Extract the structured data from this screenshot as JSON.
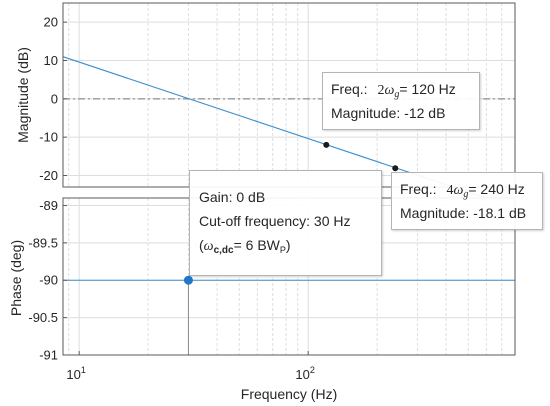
{
  "chart_data": [
    {
      "type": "line",
      "title": "",
      "ylabel": "Magnitude (dB)",
      "xscale": "log",
      "xlim": [
        8.5,
        800
      ],
      "ylim": [
        -23,
        25
      ],
      "yticks": [
        20,
        10,
        0,
        -10,
        -20
      ],
      "ytick_labels": [
        "20",
        "10",
        "0",
        "-10",
        "-20"
      ],
      "grid": true,
      "reference_line": {
        "y": 0,
        "style": "dash-dot"
      },
      "series": [
        {
          "x": [
            8.5,
            800
          ],
          "y": [
            11.0,
            -28.4
          ]
        }
      ],
      "markers": [
        {
          "x": 120,
          "y": -12
        },
        {
          "x": 240,
          "y": -18.1
        }
      ]
    },
    {
      "type": "line",
      "title": "",
      "xlabel": "Frequency  (Hz)",
      "ylabel": "Phase (deg)",
      "xscale": "log",
      "xlim": [
        8.5,
        800
      ],
      "ylim": [
        -91,
        -88.9
      ],
      "yticks": [
        -89,
        -89.5,
        -90,
        -90.5,
        -91
      ],
      "ytick_labels": [
        "-89",
        "-89.5",
        "-90",
        "-90.5",
        "-91"
      ],
      "xtick_labels": [
        {
          "base": "10",
          "exp": "1"
        },
        {
          "base": "10",
          "exp": "2"
        }
      ],
      "grid": true,
      "series": [
        {
          "x": [
            8.5,
            800
          ],
          "y": [
            -90,
            -90
          ]
        }
      ],
      "markers": [
        {
          "x": 30,
          "y": -90
        }
      ],
      "vertical_line": {
        "x": 30
      }
    }
  ],
  "colors": {
    "line": "#3a8fd1",
    "marker_magnitude": "#1a1a1a",
    "marker_phase": "#1f77c8",
    "grid": "#dedede",
    "axes": "#5a5a5a",
    "text": "#262626"
  },
  "tooltips": {
    "mag_120": {
      "freq_label": "Freq.:",
      "freq_coef": "2",
      "freq_sym": "ω",
      "freq_sub": "g",
      "freq_value": "= 120 Hz",
      "magnitude": "Magnitude: -12 dB"
    },
    "mag_240": {
      "freq_label": "Freq.:",
      "freq_coef": "4",
      "freq_sym": "ω",
      "freq_sub": "g",
      "freq_value": "= 240 Hz",
      "magnitude": "Magnitude: -18.1 dB"
    },
    "phase_30": {
      "gain": "Gain: 0 dB",
      "cutoff": "Cut-off frequency: 30 Hz",
      "note_open": "(",
      "note_sym": "ω",
      "note_sub": "c,dc",
      "note_value": "= 6 BW",
      "note_bw_sub": "P",
      "note_close": ")"
    }
  }
}
